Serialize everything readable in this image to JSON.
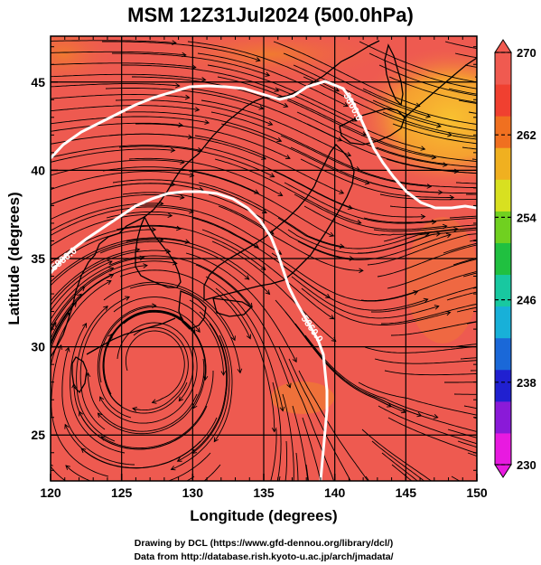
{
  "title": "MSM 12Z31Jul2024 (500.0hPa)",
  "x_axis": {
    "label": "Longitude (degrees)",
    "ticks": [
      120,
      125,
      130,
      135,
      140,
      145,
      150
    ]
  },
  "y_axis": {
    "label": "Latitude  (degrees)",
    "ticks": [
      25,
      30,
      35,
      40,
      45
    ]
  },
  "extent": {
    "lon": [
      120,
      150
    ],
    "lat": [
      22.4,
      47.6
    ]
  },
  "colorbar": {
    "ticks": [
      270,
      262,
      254,
      246,
      238,
      230
    ],
    "range": [
      230,
      270
    ],
    "colors": [
      "#e81ae0",
      "#8a1ad8",
      "#2020d0",
      "#1a68d8",
      "#18b0d8",
      "#18c8a0",
      "#20c040",
      "#70d020",
      "#d8e020",
      "#f0b020",
      "#f07020",
      "#f04030",
      "#f05a50"
    ]
  },
  "contours": [
    {
      "label": "5800.0",
      "color": "#ffffff"
    },
    {
      "label": "5880.0",
      "color": "#ffffff"
    },
    {
      "label": "5860.0",
      "color": "#ffffff"
    }
  ],
  "field_colors": {
    "base": "#ee5a50",
    "warm_zone": "#f6b040",
    "mid": "#f07a30",
    "cool_patch": "#e84038"
  },
  "credits": [
    "Drawing by DCL (https://www.gfd-dennou.org/library/dcl/)",
    "Data from http://database.rish.kyoto-u.ac.jp/arch/jmadata/"
  ]
}
